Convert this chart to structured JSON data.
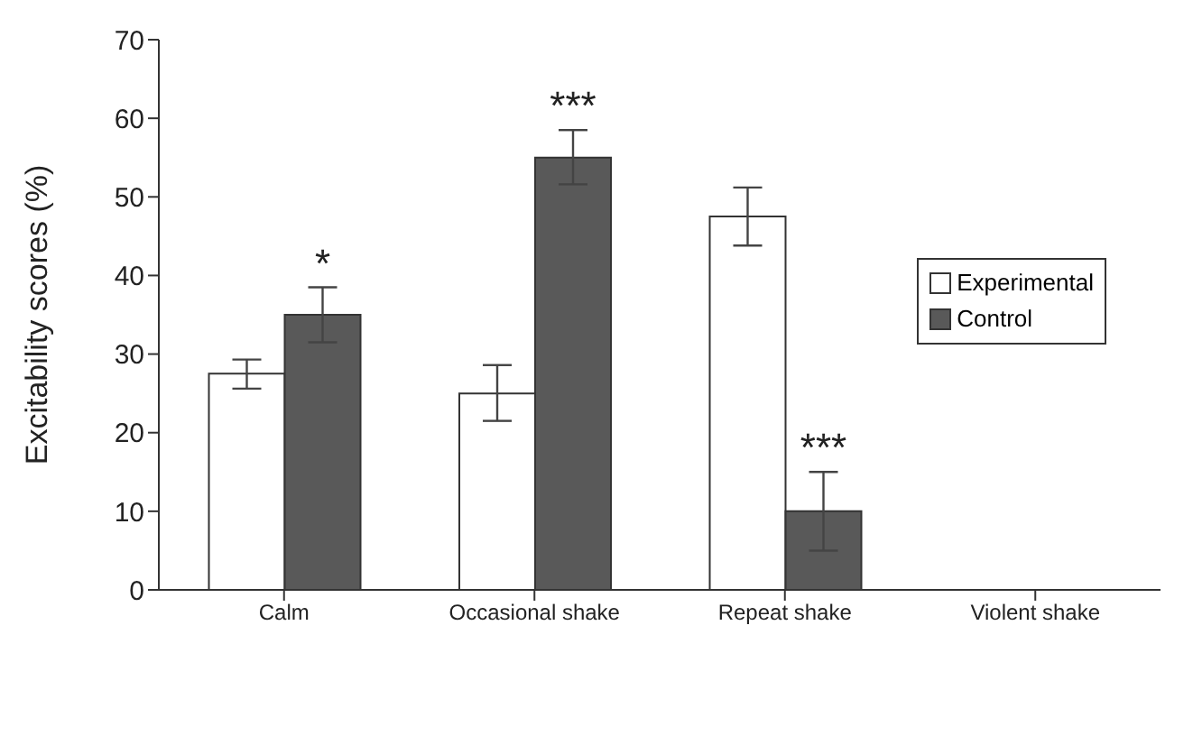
{
  "chart_data": {
    "type": "bar",
    "ylabel": "Excitability scores (%)",
    "categories": [
      "Calm",
      "Occasional shake",
      "Repeat shake",
      "Violent shake"
    ],
    "series": [
      {
        "name": "Experimental",
        "color": "#ffffff",
        "values": [
          27.5,
          25,
          47.5,
          0
        ],
        "errors": [
          [
            25.6,
            29.3
          ],
          [
            21.5,
            28.6
          ],
          [
            43.8,
            51.2
          ],
          null
        ]
      },
      {
        "name": "Control",
        "color": "#595959",
        "values": [
          35,
          55,
          10,
          0
        ],
        "errors": [
          [
            31.5,
            38.5
          ],
          [
            51.6,
            58.5
          ],
          [
            5,
            15
          ],
          null
        ]
      }
    ],
    "ylim": [
      0,
      70
    ],
    "yticks": [
      0,
      10,
      20,
      30,
      40,
      50,
      60,
      70
    ],
    "grid": false,
    "legend": "top right",
    "annotations": [
      {
        "text": "*",
        "x": "Calm",
        "y": 35
      },
      {
        "text": "***",
        "x": "Occasional shake",
        "y": 55
      },
      {
        "text": "***",
        "x": "Repeat shake",
        "y": 10
      }
    ]
  }
}
